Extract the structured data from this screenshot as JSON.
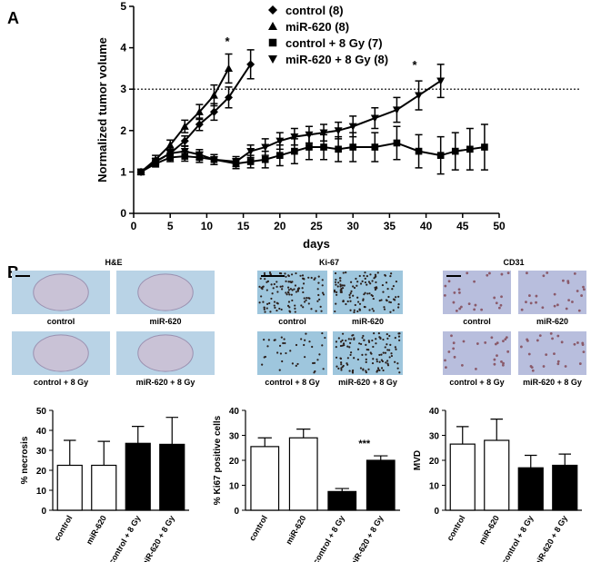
{
  "panel_labels": [
    "A",
    "B"
  ],
  "chart_data": [
    {
      "type": "line",
      "ylabel": "Normalized tumor volume",
      "xlabel": "days",
      "xlim": [
        0,
        50
      ],
      "xticks": [
        0,
        5,
        10,
        15,
        20,
        25,
        30,
        35,
        40,
        45,
        50
      ],
      "ylim": [
        0,
        5
      ],
      "yticks": [
        0,
        1,
        2,
        3,
        4,
        5
      ],
      "reference_line": 3,
      "annotations": [
        "*",
        "*"
      ],
      "series": [
        {
          "name": "control (8)",
          "color": "#000000",
          "marker": "diamond",
          "x": [
            1,
            3,
            5,
            7,
            9,
            11,
            13,
            16
          ],
          "values": [
            1,
            1.25,
            1.45,
            1.75,
            2.15,
            2.45,
            2.8,
            3.6
          ],
          "errors": [
            0.05,
            0.08,
            0.1,
            0.12,
            0.15,
            0.2,
            0.25,
            0.35
          ]
        },
        {
          "name": "miR-620 (8)",
          "color": "#000000",
          "marker": "triangle-up",
          "x": [
            1,
            3,
            5,
            7,
            9,
            11,
            13
          ],
          "values": [
            1,
            1.3,
            1.65,
            2.1,
            2.45,
            2.85,
            3.5
          ],
          "errors": [
            0.05,
            0.1,
            0.12,
            0.15,
            0.18,
            0.25,
            0.35
          ]
        },
        {
          "name": "control + 8 Gy (7)",
          "color": "#000000",
          "marker": "square",
          "x": [
            1,
            3,
            5,
            7,
            9,
            11,
            14,
            16,
            18,
            20,
            22,
            24,
            26,
            28,
            30,
            33,
            36,
            39,
            42,
            44,
            46,
            48
          ],
          "values": [
            1,
            1.2,
            1.35,
            1.38,
            1.35,
            1.3,
            1.2,
            1.25,
            1.3,
            1.4,
            1.5,
            1.6,
            1.6,
            1.55,
            1.6,
            1.6,
            1.7,
            1.5,
            1.4,
            1.5,
            1.55,
            1.6
          ],
          "errors": [
            0.05,
            0.08,
            0.1,
            0.12,
            0.12,
            0.12,
            0.12,
            0.15,
            0.2,
            0.25,
            0.3,
            0.3,
            0.3,
            0.3,
            0.35,
            0.35,
            0.4,
            0.4,
            0.45,
            0.45,
            0.5,
            0.55
          ]
        },
        {
          "name": "miR-620 + 8  Gy (8)",
          "color": "#000000",
          "marker": "triangle-down",
          "x": [
            1,
            3,
            5,
            7,
            9,
            11,
            14,
            16,
            18,
            20,
            22,
            24,
            26,
            28,
            30,
            33,
            36,
            39,
            42
          ],
          "values": [
            1,
            1.25,
            1.45,
            1.5,
            1.42,
            1.3,
            1.25,
            1.5,
            1.6,
            1.75,
            1.85,
            1.9,
            1.95,
            2.0,
            2.1,
            2.3,
            2.5,
            2.85,
            3.2
          ],
          "errors": [
            0.05,
            0.08,
            0.1,
            0.12,
            0.12,
            0.12,
            0.12,
            0.15,
            0.2,
            0.2,
            0.2,
            0.2,
            0.2,
            0.2,
            0.25,
            0.25,
            0.3,
            0.35,
            0.4
          ]
        }
      ]
    },
    {
      "type": "bar",
      "ylabel": "% necrosis",
      "categories": [
        "control",
        "miR-620",
        "control + 8 Gy",
        "miR-620 + 8 Gy"
      ],
      "values": [
        22.5,
        22.5,
        33.5,
        33
      ],
      "errors": [
        12.5,
        12,
        8.5,
        13.5
      ],
      "colors": [
        "#ffffff",
        "#ffffff",
        "#000000",
        "#000000"
      ],
      "ylim": [
        0,
        50
      ],
      "yticks": [
        0,
        10,
        20,
        30,
        40,
        50
      ]
    },
    {
      "type": "bar",
      "ylabel": "% Ki67 positive cells",
      "categories": [
        "control",
        "miR-620",
        "control + 8 Gy",
        "miR-620 + 8 Gy"
      ],
      "values": [
        25.5,
        29,
        7.5,
        20
      ],
      "errors": [
        3.5,
        3.5,
        1.2,
        1.8
      ],
      "colors": [
        "#ffffff",
        "#ffffff",
        "#000000",
        "#000000"
      ],
      "ylim": [
        0,
        40
      ],
      "yticks": [
        0,
        10,
        20,
        30,
        40
      ],
      "annotations": [
        "***"
      ]
    },
    {
      "type": "bar",
      "ylabel": "MVD",
      "categories": [
        "control",
        "miR-620",
        "control + 8 Gy",
        "miR-620 + 8 Gy"
      ],
      "values": [
        26.5,
        28,
        17,
        18
      ],
      "errors": [
        7,
        8.5,
        5,
        4.5
      ],
      "colors": [
        "#ffffff",
        "#ffffff",
        "#000000",
        "#000000"
      ],
      "ylim": [
        0,
        40
      ],
      "yticks": [
        0,
        10,
        20,
        30,
        40
      ]
    }
  ],
  "image_panels": [
    {
      "title": "H&E",
      "labels": [
        "control",
        "miR-620",
        "control + 8 Gy",
        "miR-620 + 8 Gy"
      ]
    },
    {
      "title": "Ki-67",
      "labels": [
        "control",
        "miR-620",
        "control + 8 Gy",
        "miR-620 + 8 Gy"
      ]
    },
    {
      "title": "CD31",
      "labels": [
        "control",
        "miR-620",
        "control + 8 Gy",
        "miR-620 + 8 Gy"
      ]
    }
  ]
}
